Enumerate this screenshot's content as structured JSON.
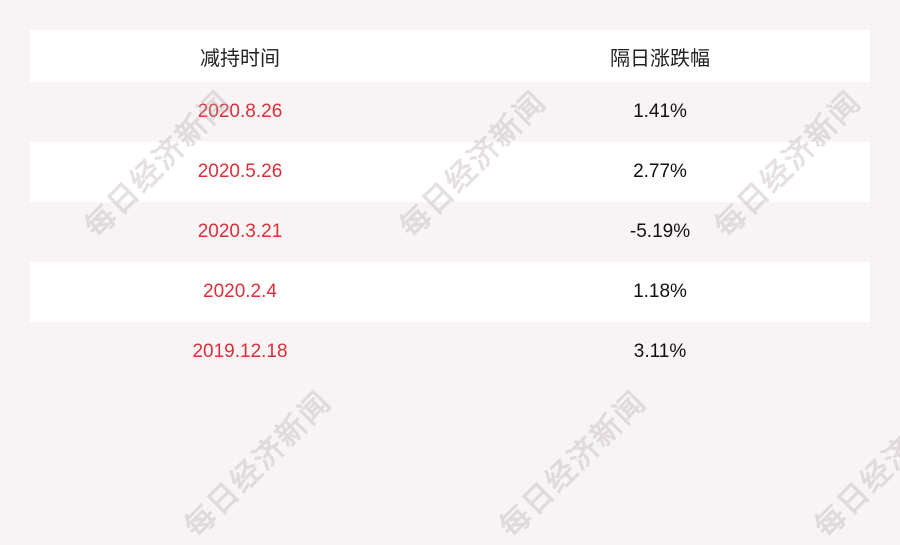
{
  "table": {
    "headers": [
      "减持时间",
      "隔日涨跌幅"
    ],
    "rows": [
      {
        "date": "2020.8.26",
        "change": "1.41%"
      },
      {
        "date": "2020.5.26",
        "change": "2.77%"
      },
      {
        "date": "2020.3.21",
        "change": "-5.19%"
      },
      {
        "date": "2020.2.4",
        "change": "1.18%"
      },
      {
        "date": "2019.12.18",
        "change": "3.11%"
      }
    ]
  },
  "watermark": "每日经济新闻",
  "colors": {
    "date_text": "#d9303a",
    "background": "#f8f4f5"
  }
}
